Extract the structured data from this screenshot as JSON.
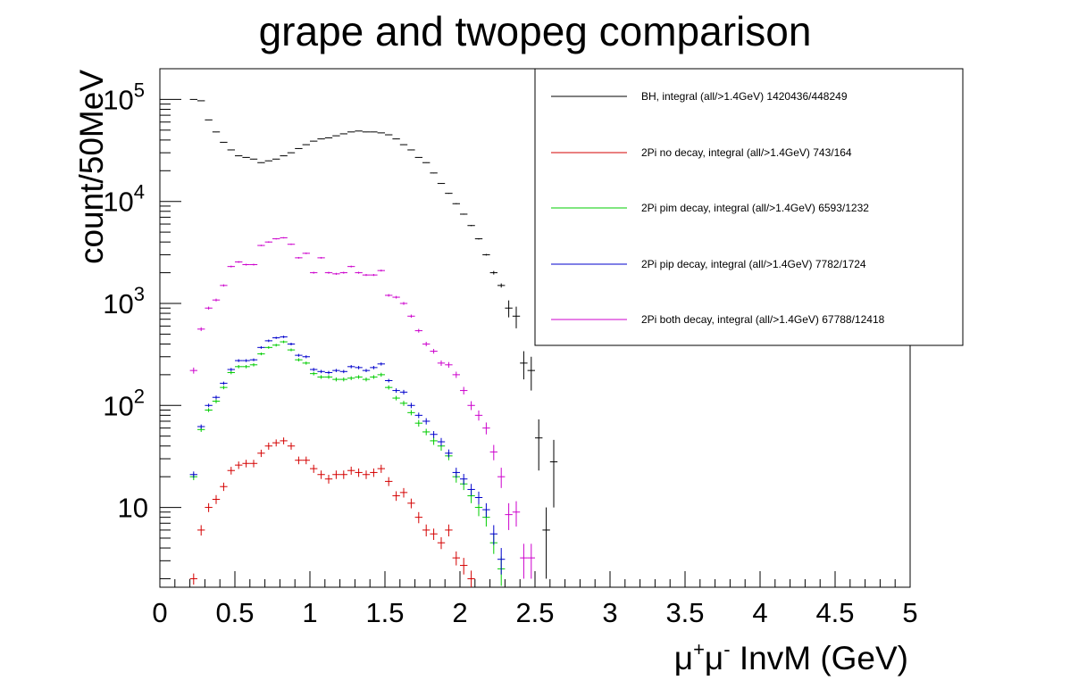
{
  "chart_data": {
    "type": "scatter",
    "title": "grape and twopeg comparison",
    "xlabel": "μ⁺μ⁻ InvM (GeV)",
    "xlabel_base": "μ",
    "xlabel_sup1": "+",
    "xlabel_mid": "μ",
    "xlabel_sup2": "-",
    "xlabel_tail": " InvM (GeV)",
    "ylabel": "count/50MeV",
    "xlim": [
      0,
      5
    ],
    "ylim": [
      1.65,
      200000
    ],
    "y_scale": "log",
    "grid": false,
    "legend_position": "top-right",
    "x_ticks": [
      {
        "value": 0,
        "label": "0"
      },
      {
        "value": 0.5,
        "label": "0.5"
      },
      {
        "value": 1,
        "label": "1"
      },
      {
        "value": 1.5,
        "label": "1.5"
      },
      {
        "value": 2,
        "label": "2"
      },
      {
        "value": 2.5,
        "label": "2.5"
      },
      {
        "value": 3,
        "label": "3"
      },
      {
        "value": 3.5,
        "label": "3.5"
      },
      {
        "value": 4,
        "label": "4"
      },
      {
        "value": 4.5,
        "label": "4.5"
      },
      {
        "value": 5,
        "label": "5"
      }
    ],
    "y_ticks": [
      {
        "value": 10,
        "base": "10",
        "exp": ""
      },
      {
        "value": 100,
        "base": "10",
        "exp": "2"
      },
      {
        "value": 1000,
        "base": "10",
        "exp": "3"
      },
      {
        "value": 10000,
        "base": "10",
        "exp": "4"
      },
      {
        "value": 100000,
        "base": "10",
        "exp": "5"
      }
    ],
    "bin_width": 0.05,
    "x": [
      0.225,
      0.275,
      0.325,
      0.375,
      0.425,
      0.475,
      0.525,
      0.575,
      0.625,
      0.675,
      0.725,
      0.775,
      0.825,
      0.875,
      0.925,
      0.975,
      1.025,
      1.075,
      1.125,
      1.175,
      1.225,
      1.275,
      1.325,
      1.375,
      1.425,
      1.475,
      1.525,
      1.575,
      1.625,
      1.675,
      1.725,
      1.775,
      1.825,
      1.875,
      1.925,
      1.975,
      2.025,
      2.075,
      2.125,
      2.175,
      2.225,
      2.275,
      2.325,
      2.375,
      2.425,
      2.475,
      2.525,
      2.575,
      2.625
    ],
    "series": [
      {
        "name": "BH, integral (all/>1.4GeV) 1420436/448249",
        "color": "#000000",
        "values": [
          100000,
          97000,
          63000,
          48000,
          38000,
          32000,
          28000,
          27000,
          26000,
          24000,
          25000,
          26000,
          28000,
          30000,
          33000,
          36000,
          39000,
          41000,
          42000,
          44000,
          46000,
          48000,
          49000,
          48000,
          48000,
          47000,
          45000,
          41000,
          36000,
          32000,
          27000,
          24000,
          19000,
          15000,
          12000,
          9500,
          7500,
          5800,
          4300,
          3000,
          2000,
          1500,
          900,
          750,
          260,
          220,
          48,
          6,
          28
        ],
        "errors": [
          320,
          310,
          250,
          220,
          195,
          180,
          168,
          165,
          160,
          155,
          158,
          160,
          168,
          173,
          182,
          190,
          198,
          203,
          205,
          210,
          215,
          220,
          222,
          220,
          220,
          217,
          212,
          203,
          190,
          179,
          164,
          155,
          138,
          122,
          110,
          97,
          87,
          76,
          66,
          55,
          80,
          70,
          170,
          180,
          80,
          80,
          25,
          4,
          18
        ]
      },
      {
        "name": "2Pi no decay, integral (all/>1.4GeV) 743/164",
        "color": "#d40000",
        "values": [
          2,
          6,
          10,
          12,
          16,
          23,
          26,
          27,
          27,
          34,
          40,
          43,
          45,
          40,
          29,
          29,
          24,
          21,
          19,
          21,
          21,
          23,
          22,
          21,
          22,
          24,
          18,
          13,
          14,
          11,
          8,
          6,
          5.5,
          4.5,
          6,
          3.2,
          2.7,
          2
        ],
        "errors": [
          0.25,
          0.7,
          1.0,
          1.2,
          1.5,
          2.0,
          2.2,
          2.3,
          2.3,
          2.8,
          3.2,
          3.4,
          3.5,
          3.2,
          2.5,
          2.5,
          2.2,
          2.0,
          1.9,
          2.0,
          2.0,
          2.1,
          2.1,
          2.0,
          2.1,
          2.2,
          1.8,
          1.4,
          1.5,
          1.2,
          1.0,
          0.8,
          0.7,
          0.6,
          0.8,
          0.5,
          0.5,
          0.4
        ]
      },
      {
        "name": "2Pi pim decay, integral (all/>1.4GeV) 6593/1232",
        "color": "#00cc00",
        "values": [
          20,
          58,
          90,
          110,
          150,
          210,
          240,
          240,
          250,
          320,
          370,
          390,
          420,
          350,
          280,
          260,
          205,
          190,
          190,
          180,
          180,
          185,
          190,
          180,
          190,
          200,
          150,
          118,
          105,
          85,
          67,
          55,
          45,
          40,
          32,
          20,
          17,
          13,
          10,
          8,
          4.5,
          2.5,
          1.6
        ],
        "errors": [
          1.5,
          3,
          4,
          5,
          6,
          8,
          9,
          9,
          9,
          10,
          11,
          12,
          12,
          11,
          10,
          9,
          8,
          8,
          8,
          8,
          8,
          8,
          8,
          8,
          8,
          9,
          7,
          6,
          6,
          5,
          5,
          4,
          4,
          4,
          3,
          2.5,
          2.2,
          2,
          1.8,
          1.5,
          1,
          0.8,
          0.6
        ]
      },
      {
        "name": "2Pi pip decay, integral (all/>1.4GeV) 7782/1724",
        "color": "#0000cc",
        "values": [
          21,
          62,
          100,
          120,
          165,
          225,
          275,
          275,
          280,
          370,
          430,
          460,
          470,
          400,
          310,
          300,
          225,
          215,
          210,
          220,
          215,
          240,
          235,
          220,
          235,
          255,
          175,
          140,
          135,
          100,
          80,
          70,
          52,
          44,
          34,
          22,
          19,
          15,
          12.5,
          9.5,
          5.5,
          3.1
        ],
        "errors": [
          1.5,
          3,
          4,
          5,
          6,
          8,
          9,
          9,
          9,
          11,
          12,
          12,
          13,
          12,
          10,
          10,
          8,
          8,
          8,
          8,
          8,
          9,
          9,
          8,
          9,
          9,
          7,
          7,
          7,
          6,
          5,
          5,
          4,
          4,
          3,
          2.5,
          2.3,
          2,
          1.8,
          1.5,
          1.2,
          0.9
        ]
      },
      {
        "name": "2Pi both decay, integral (all/>1.4GeV) 67788/12418",
        "color": "#cc00cc",
        "values": [
          220,
          560,
          900,
          1080,
          1500,
          2300,
          2550,
          2400,
          2400,
          3700,
          4000,
          4300,
          4400,
          3800,
          2800,
          3100,
          2000,
          2800,
          2000,
          1950,
          2000,
          2300,
          2000,
          1900,
          1900,
          2100,
          1200,
          1150,
          1000,
          750,
          540,
          400,
          340,
          260,
          250,
          200,
          140,
          100,
          80,
          60,
          35,
          20,
          8.5,
          9,
          3.2,
          3.2
        ],
        "errors": [
          15,
          24,
          30,
          33,
          39,
          48,
          50,
          49,
          49,
          61,
          63,
          66,
          66,
          62,
          53,
          56,
          45,
          53,
          45,
          44,
          45,
          48,
          45,
          44,
          44,
          46,
          35,
          34,
          32,
          27,
          23,
          20,
          18,
          16,
          16,
          14,
          12,
          10,
          9,
          8,
          6,
          4.5,
          2.5,
          2.5,
          1.2,
          1.2
        ]
      }
    ]
  }
}
